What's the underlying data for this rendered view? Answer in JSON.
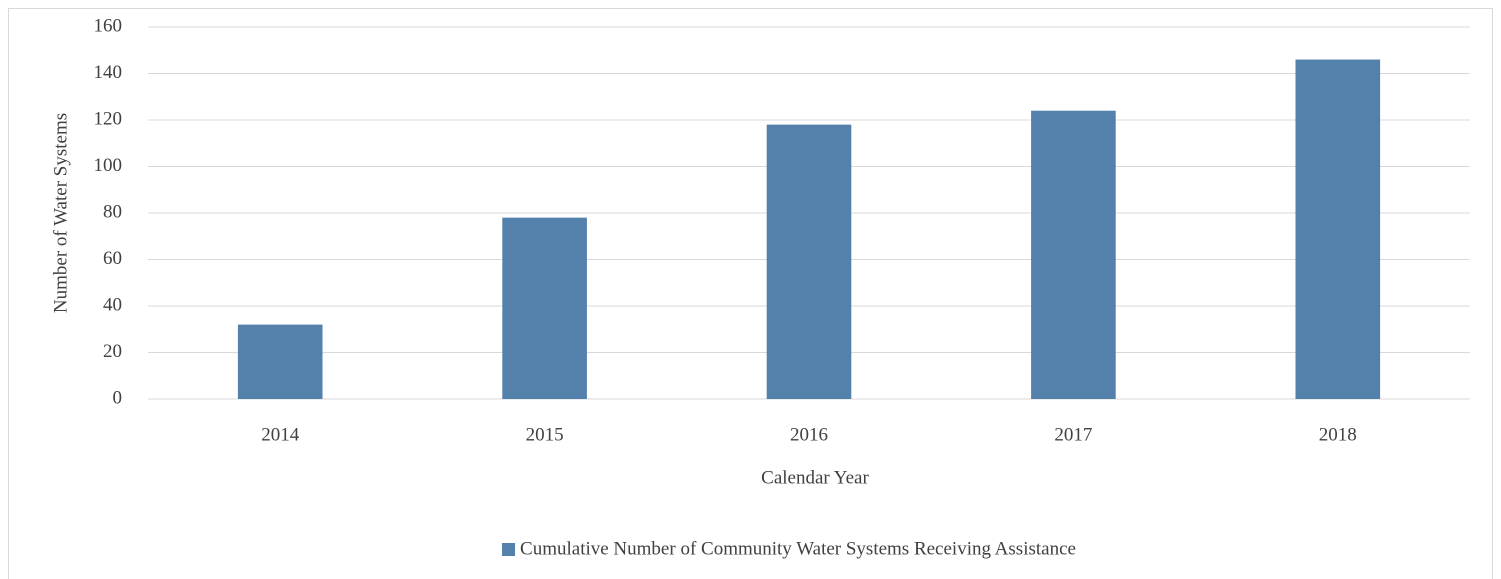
{
  "chart_data": {
    "type": "bar",
    "x_label": "Calendar Year",
    "y_label": "Number of Water Systems",
    "categories": [
      "2014",
      "2015",
      "2016",
      "2017",
      "2018"
    ],
    "series": [
      {
        "name": "Cumulative Number of Community Water Systems Receiving Assistance",
        "color": "#5381ac",
        "values": [
          32,
          78,
          118,
          124,
          146
        ]
      }
    ],
    "ylim": [
      0,
      160
    ],
    "yticks": [
      0,
      20,
      40,
      60,
      80,
      100,
      120,
      140,
      160
    ],
    "grid": true,
    "legend": "bottom"
  }
}
